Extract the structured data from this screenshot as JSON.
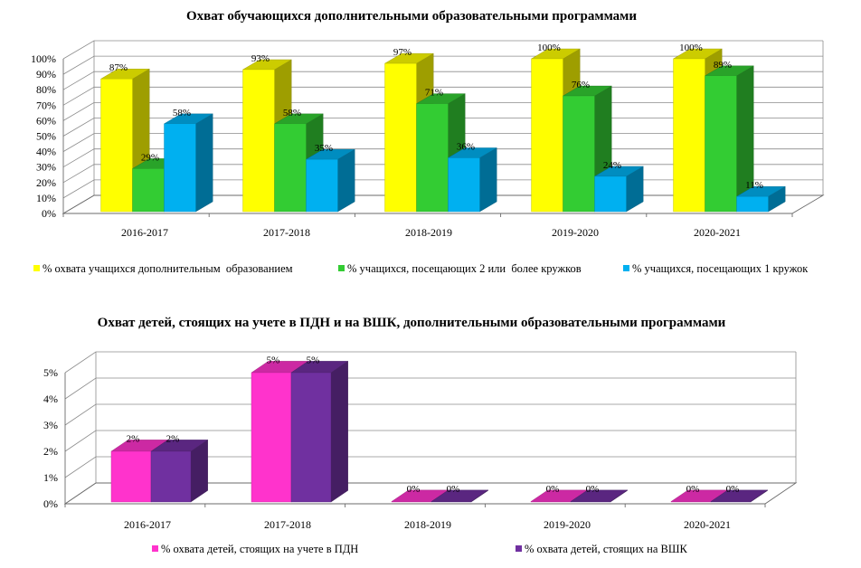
{
  "chart_data": [
    {
      "type": "bar",
      "title": "Охват обучающихся дополнительными образовательными программами",
      "xlabel": "",
      "ylabel": "",
      "ylim": [
        0,
        100
      ],
      "yticks": [
        "0%",
        "10%",
        "20%",
        "30%",
        "40%",
        "50%",
        "60%",
        "70%",
        "80%",
        "90%",
        "100%"
      ],
      "categories": [
        "2016-2017",
        "2017-2018",
        "2018-2019",
        "2019-2020",
        "2020-2021"
      ],
      "series": [
        {
          "name": "% охвата учащихся дополнительным  образованием",
          "values": [
            87,
            93,
            97,
            100,
            100
          ],
          "labels": [
            "87%",
            "93%",
            "97%",
            "100%",
            "100%"
          ],
          "color": "#ffff00"
        },
        {
          "name": "% учащихся, посещающих 2 или  более кружков",
          "values": [
            29,
            58,
            71,
            76,
            89
          ],
          "labels": [
            "29%",
            "58%",
            "71%",
            "76%",
            "89%"
          ],
          "color": "#33cc33"
        },
        {
          "name": "% учащихся, посещающих 1 кружок",
          "values": [
            58,
            35,
            36,
            24,
            11
          ],
          "labels": [
            "58%",
            "35%",
            "36%",
            "24%",
            "11%"
          ],
          "color": "#00b0f0"
        }
      ],
      "grid": true,
      "legend": "bottom"
    },
    {
      "type": "bar",
      "title": "Охват детей, стоящих на учете в ПДН и на ВШК, дополнительными образовательными программами",
      "xlabel": "",
      "ylabel": "",
      "ylim": [
        0,
        5
      ],
      "yticks": [
        "0%",
        "1%",
        "2%",
        "3%",
        "4%",
        "5%"
      ],
      "categories": [
        "2016-2017",
        "2017-2018",
        "2018-2019",
        "2019-2020",
        "2020-2021"
      ],
      "series": [
        {
          "name": "% охвата детей, стоящих на учете в ПДН",
          "values": [
            2,
            5,
            0,
            0,
            0
          ],
          "labels": [
            "2%",
            "5%",
            "0%",
            "0%",
            "0%"
          ],
          "color": "#ff33cc"
        },
        {
          "name": "% охвата детей, стоящих на ВШК",
          "values": [
            2,
            5,
            0,
            0,
            0
          ],
          "labels": [
            "2%",
            "5%",
            "0%",
            "0%",
            "0%"
          ],
          "color": "#7030a0"
        }
      ],
      "grid": true,
      "legend": "bottom"
    }
  ]
}
